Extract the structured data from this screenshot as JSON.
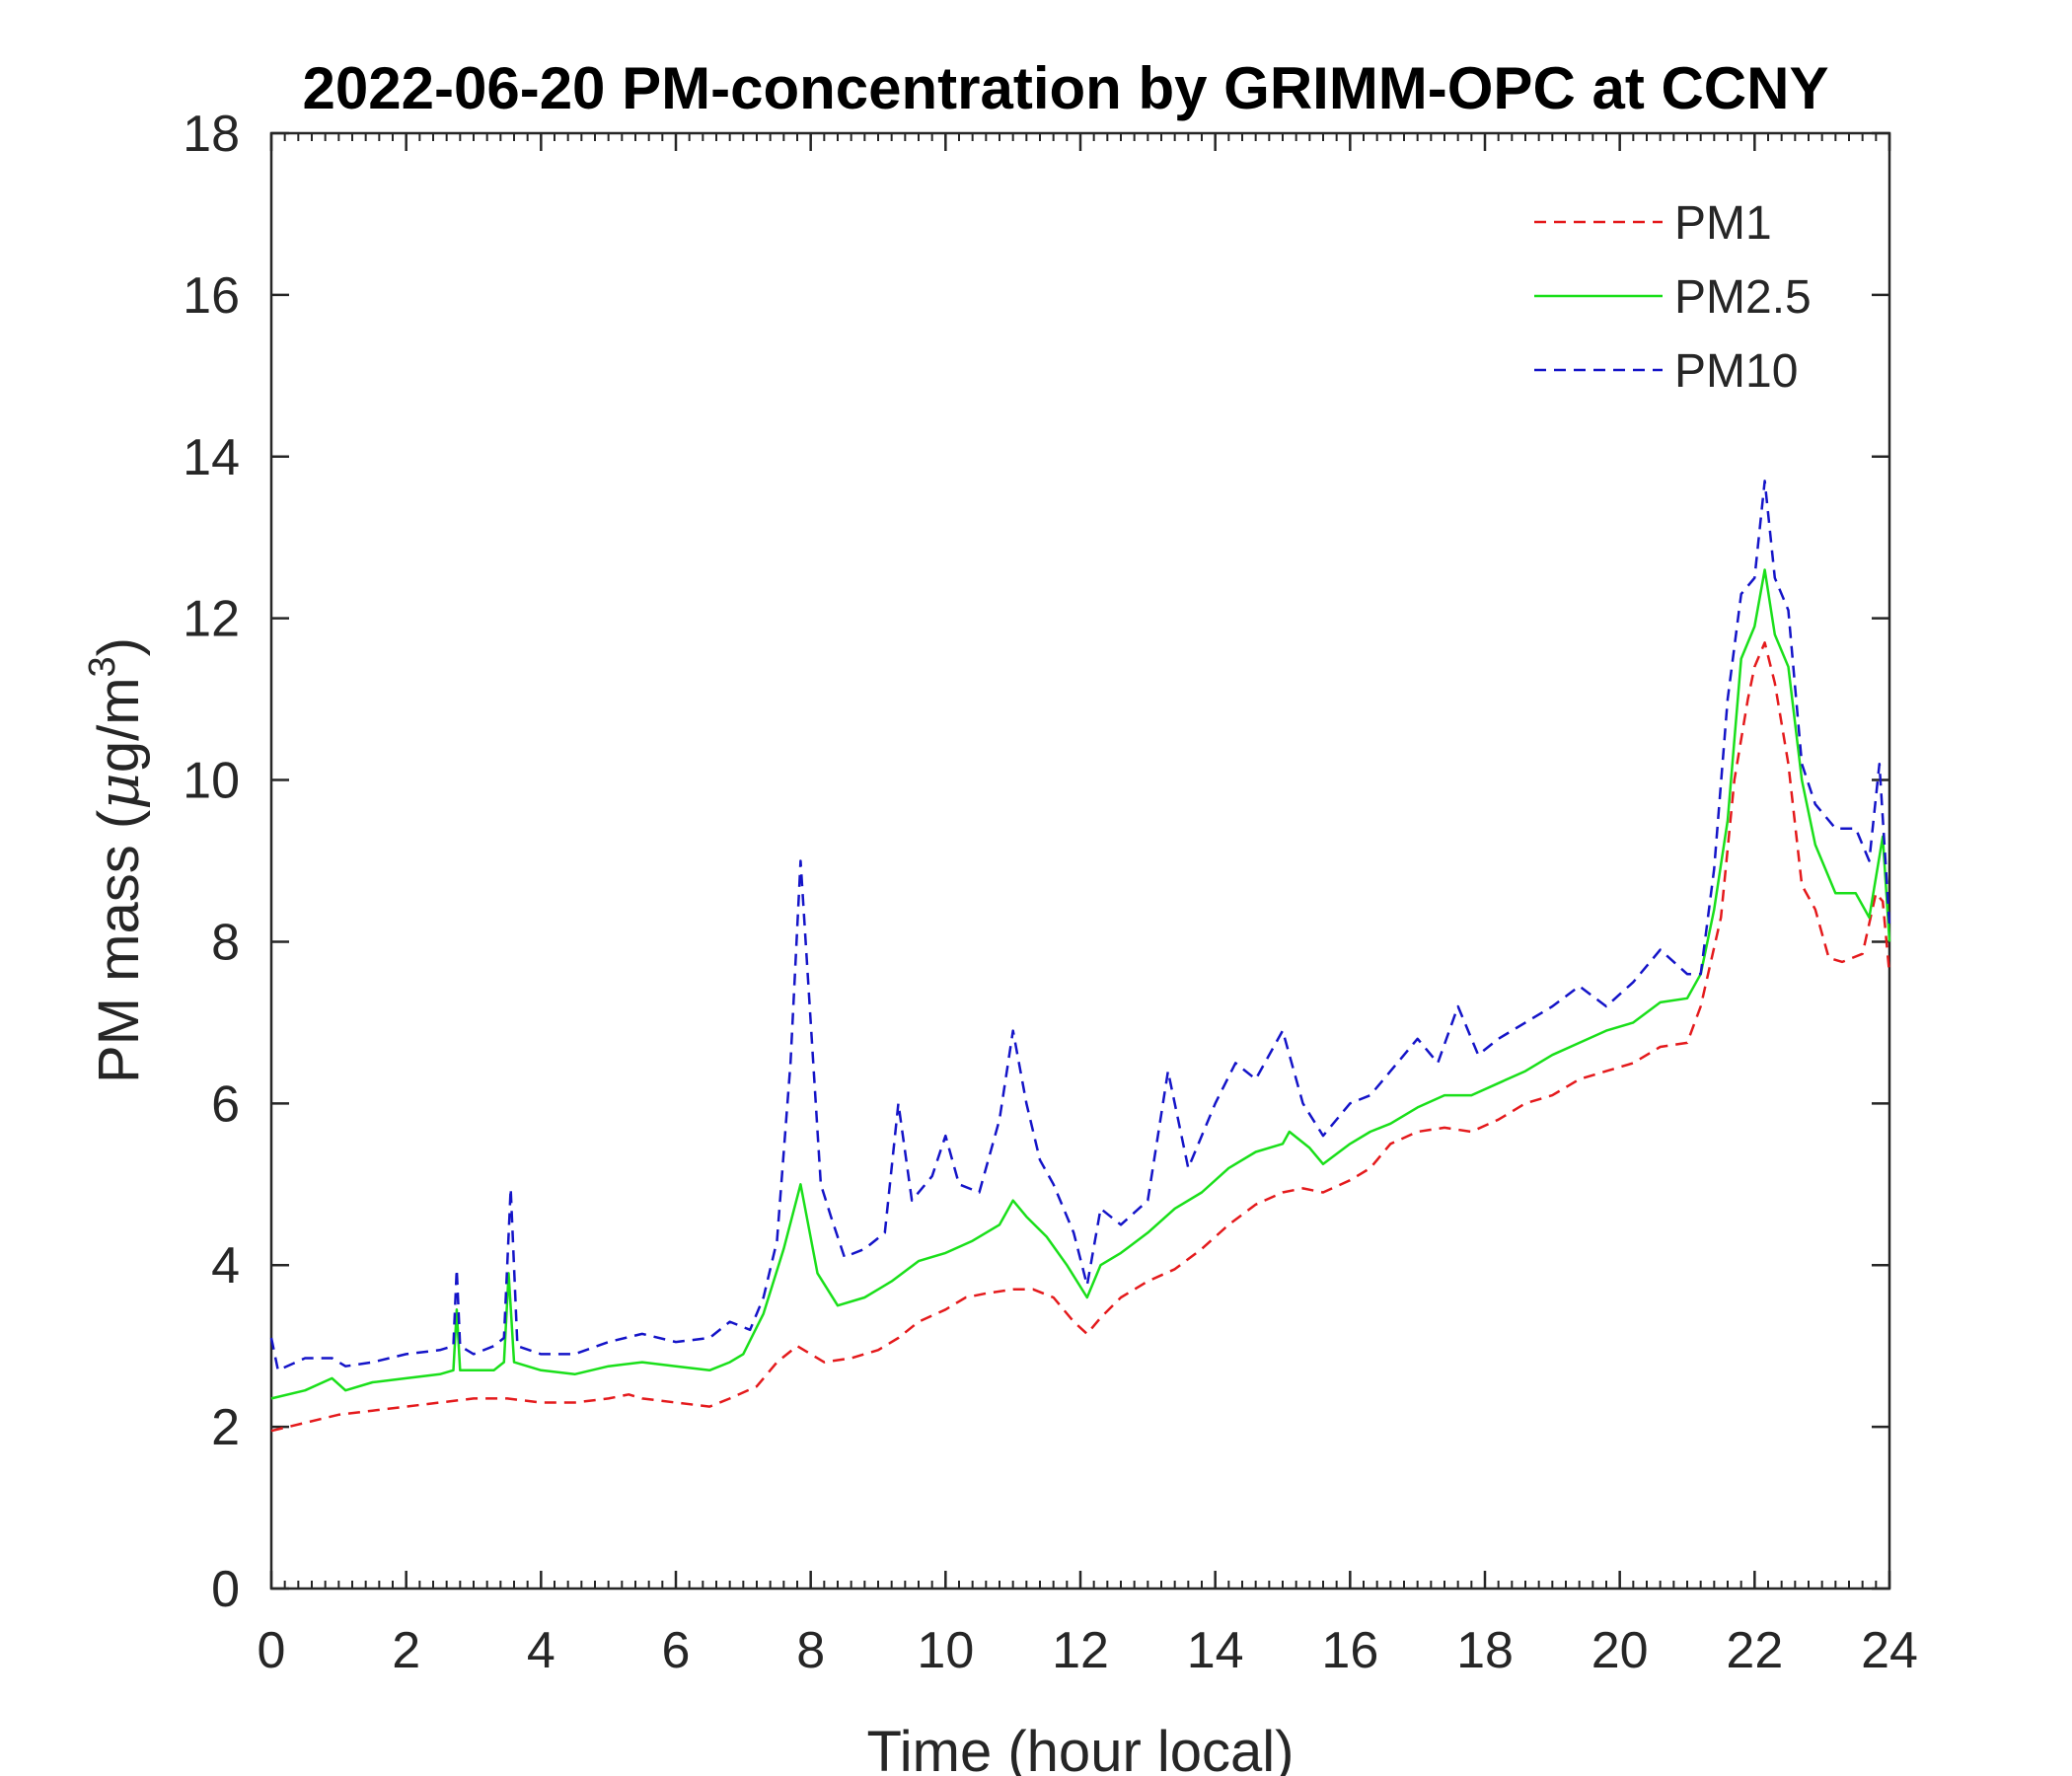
{
  "chart_data": {
    "type": "line",
    "title": "2022-06-20 PM-concentration by GRIMM-OPC at CCNY",
    "xlabel": "Time (hour local)",
    "ylabel_main": "PM mass (",
    "ylabel_mu": "μ",
    "ylabel_unit": "g/m",
    "ylabel_sup": "3",
    "ylabel_close": ")",
    "xlim": [
      0,
      24
    ],
    "ylim": [
      0,
      18
    ],
    "xticks": [
      "0",
      "2",
      "4",
      "6",
      "8",
      "10",
      "12",
      "14",
      "16",
      "18",
      "20",
      "22",
      "24"
    ],
    "yticks": [
      "0",
      "2",
      "4",
      "6",
      "8",
      "10",
      "12",
      "14",
      "16",
      "18"
    ],
    "legend_position": "top-right",
    "grid": false,
    "series": [
      {
        "name": "PM1",
        "color": "#e41a1c",
        "style": "dashed",
        "points": [
          [
            0,
            1.95
          ],
          [
            0.5,
            2.05
          ],
          [
            1,
            2.15
          ],
          [
            1.5,
            2.2
          ],
          [
            2,
            2.25
          ],
          [
            2.5,
            2.3
          ],
          [
            3,
            2.35
          ],
          [
            3.5,
            2.35
          ],
          [
            4,
            2.3
          ],
          [
            4.5,
            2.3
          ],
          [
            5,
            2.35
          ],
          [
            5.3,
            2.4
          ],
          [
            5.5,
            2.35
          ],
          [
            6,
            2.3
          ],
          [
            6.5,
            2.25
          ],
          [
            6.8,
            2.35
          ],
          [
            7.2,
            2.5
          ],
          [
            7.5,
            2.8
          ],
          [
            7.8,
            3.0
          ],
          [
            8.2,
            2.8
          ],
          [
            8.6,
            2.85
          ],
          [
            9,
            2.95
          ],
          [
            9.3,
            3.1
          ],
          [
            9.6,
            3.3
          ],
          [
            10,
            3.45
          ],
          [
            10.3,
            3.6
          ],
          [
            10.6,
            3.65
          ],
          [
            11,
            3.7
          ],
          [
            11.3,
            3.7
          ],
          [
            11.6,
            3.6
          ],
          [
            11.9,
            3.3
          ],
          [
            12.1,
            3.15
          ],
          [
            12.3,
            3.35
          ],
          [
            12.6,
            3.6
          ],
          [
            13,
            3.8
          ],
          [
            13.4,
            3.95
          ],
          [
            13.8,
            4.2
          ],
          [
            14.2,
            4.5
          ],
          [
            14.6,
            4.75
          ],
          [
            15,
            4.9
          ],
          [
            15.3,
            4.95
          ],
          [
            15.6,
            4.9
          ],
          [
            16,
            5.05
          ],
          [
            16.3,
            5.2
          ],
          [
            16.6,
            5.5
          ],
          [
            17,
            5.65
          ],
          [
            17.4,
            5.7
          ],
          [
            17.8,
            5.65
          ],
          [
            18.2,
            5.8
          ],
          [
            18.6,
            6.0
          ],
          [
            19,
            6.1
          ],
          [
            19.4,
            6.3
          ],
          [
            19.8,
            6.4
          ],
          [
            20.2,
            6.5
          ],
          [
            20.6,
            6.7
          ],
          [
            21,
            6.75
          ],
          [
            21.2,
            7.2
          ],
          [
            21.5,
            8.3
          ],
          [
            21.7,
            10.0
          ],
          [
            21.9,
            11.0
          ],
          [
            22.0,
            11.4
          ],
          [
            22.15,
            11.7
          ],
          [
            22.3,
            11.2
          ],
          [
            22.5,
            10.2
          ],
          [
            22.7,
            8.7
          ],
          [
            22.9,
            8.4
          ],
          [
            23.1,
            7.8
          ],
          [
            23.3,
            7.75
          ],
          [
            23.6,
            7.85
          ],
          [
            23.8,
            8.6
          ],
          [
            23.9,
            8.5
          ],
          [
            24,
            7.6
          ]
        ]
      },
      {
        "name": "PM2.5",
        "color": "#1adf1a",
        "style": "solid",
        "points": [
          [
            0,
            2.35
          ],
          [
            0.5,
            2.45
          ],
          [
            0.9,
            2.6
          ],
          [
            1.1,
            2.45
          ],
          [
            1.5,
            2.55
          ],
          [
            2,
            2.6
          ],
          [
            2.5,
            2.65
          ],
          [
            2.7,
            2.7
          ],
          [
            2.75,
            3.45
          ],
          [
            2.8,
            2.7
          ],
          [
            3,
            2.7
          ],
          [
            3.3,
            2.7
          ],
          [
            3.45,
            2.8
          ],
          [
            3.52,
            3.9
          ],
          [
            3.6,
            2.8
          ],
          [
            4,
            2.7
          ],
          [
            4.5,
            2.65
          ],
          [
            5,
            2.75
          ],
          [
            5.5,
            2.8
          ],
          [
            6,
            2.75
          ],
          [
            6.5,
            2.7
          ],
          [
            6.8,
            2.8
          ],
          [
            7,
            2.9
          ],
          [
            7.3,
            3.4
          ],
          [
            7.6,
            4.2
          ],
          [
            7.85,
            5.0
          ],
          [
            8.1,
            3.9
          ],
          [
            8.4,
            3.5
          ],
          [
            8.8,
            3.6
          ],
          [
            9.2,
            3.8
          ],
          [
            9.6,
            4.05
          ],
          [
            10,
            4.15
          ],
          [
            10.4,
            4.3
          ],
          [
            10.8,
            4.5
          ],
          [
            11.0,
            4.8
          ],
          [
            11.2,
            4.6
          ],
          [
            11.5,
            4.35
          ],
          [
            11.8,
            4.0
          ],
          [
            12.1,
            3.6
          ],
          [
            12.3,
            4.0
          ],
          [
            12.6,
            4.15
          ],
          [
            13,
            4.4
          ],
          [
            13.4,
            4.7
          ],
          [
            13.8,
            4.9
          ],
          [
            14.2,
            5.2
          ],
          [
            14.6,
            5.4
          ],
          [
            15,
            5.5
          ],
          [
            15.1,
            5.65
          ],
          [
            15.4,
            5.45
          ],
          [
            15.6,
            5.25
          ],
          [
            16,
            5.5
          ],
          [
            16.3,
            5.65
          ],
          [
            16.6,
            5.75
          ],
          [
            17,
            5.95
          ],
          [
            17.4,
            6.1
          ],
          [
            17.8,
            6.1
          ],
          [
            18.2,
            6.25
          ],
          [
            18.6,
            6.4
          ],
          [
            19,
            6.6
          ],
          [
            19.4,
            6.75
          ],
          [
            19.8,
            6.9
          ],
          [
            20.2,
            7.0
          ],
          [
            20.6,
            7.25
          ],
          [
            21,
            7.3
          ],
          [
            21.2,
            7.6
          ],
          [
            21.4,
            8.4
          ],
          [
            21.6,
            9.5
          ],
          [
            21.8,
            11.5
          ],
          [
            22.0,
            11.9
          ],
          [
            22.15,
            12.6
          ],
          [
            22.3,
            11.8
          ],
          [
            22.5,
            11.4
          ],
          [
            22.7,
            10.0
          ],
          [
            22.9,
            9.2
          ],
          [
            23.2,
            8.6
          ],
          [
            23.5,
            8.6
          ],
          [
            23.7,
            8.3
          ],
          [
            23.9,
            9.3
          ],
          [
            24,
            8.0
          ]
        ]
      },
      {
        "name": "PM10",
        "color": "#1414c8",
        "style": "dashed",
        "points": [
          [
            0,
            3.1
          ],
          [
            0.1,
            2.7
          ],
          [
            0.5,
            2.85
          ],
          [
            0.9,
            2.85
          ],
          [
            1.1,
            2.75
          ],
          [
            1.5,
            2.8
          ],
          [
            2,
            2.9
          ],
          [
            2.5,
            2.95
          ],
          [
            2.7,
            3.0
          ],
          [
            2.75,
            3.95
          ],
          [
            2.8,
            3.0
          ],
          [
            3.0,
            2.9
          ],
          [
            3.3,
            3.0
          ],
          [
            3.45,
            3.1
          ],
          [
            3.55,
            4.95
          ],
          [
            3.65,
            3.0
          ],
          [
            4,
            2.9
          ],
          [
            4.5,
            2.9
          ],
          [
            5,
            3.05
          ],
          [
            5.5,
            3.15
          ],
          [
            6,
            3.05
          ],
          [
            6.5,
            3.1
          ],
          [
            6.8,
            3.3
          ],
          [
            7.1,
            3.2
          ],
          [
            7.3,
            3.6
          ],
          [
            7.5,
            4.3
          ],
          [
            7.7,
            6.5
          ],
          [
            7.85,
            9.0
          ],
          [
            8.0,
            7.0
          ],
          [
            8.15,
            5.0
          ],
          [
            8.3,
            4.6
          ],
          [
            8.5,
            4.1
          ],
          [
            8.8,
            4.2
          ],
          [
            9.1,
            4.4
          ],
          [
            9.3,
            6.0
          ],
          [
            9.5,
            4.8
          ],
          [
            9.8,
            5.1
          ],
          [
            10,
            5.6
          ],
          [
            10.2,
            5.0
          ],
          [
            10.5,
            4.9
          ],
          [
            10.8,
            5.8
          ],
          [
            11.0,
            6.9
          ],
          [
            11.2,
            6.0
          ],
          [
            11.4,
            5.3
          ],
          [
            11.6,
            5.0
          ],
          [
            11.9,
            4.4
          ],
          [
            12.1,
            3.75
          ],
          [
            12.3,
            4.7
          ],
          [
            12.6,
            4.5
          ],
          [
            13,
            4.8
          ],
          [
            13.3,
            6.4
          ],
          [
            13.6,
            5.2
          ],
          [
            14,
            6.0
          ],
          [
            14.3,
            6.5
          ],
          [
            14.6,
            6.3
          ],
          [
            15,
            6.9
          ],
          [
            15.3,
            6.0
          ],
          [
            15.6,
            5.6
          ],
          [
            16,
            6.0
          ],
          [
            16.3,
            6.1
          ],
          [
            16.6,
            6.4
          ],
          [
            17,
            6.8
          ],
          [
            17.3,
            6.5
          ],
          [
            17.6,
            7.2
          ],
          [
            17.9,
            6.6
          ],
          [
            18.2,
            6.8
          ],
          [
            18.6,
            7.0
          ],
          [
            19,
            7.2
          ],
          [
            19.4,
            7.45
          ],
          [
            19.8,
            7.2
          ],
          [
            20.2,
            7.5
          ],
          [
            20.6,
            7.9
          ],
          [
            21,
            7.6
          ],
          [
            21.2,
            7.6
          ],
          [
            21.4,
            8.9
          ],
          [
            21.6,
            11.0
          ],
          [
            21.8,
            12.3
          ],
          [
            22.0,
            12.5
          ],
          [
            22.15,
            13.7
          ],
          [
            22.3,
            12.5
          ],
          [
            22.5,
            12.1
          ],
          [
            22.7,
            10.2
          ],
          [
            22.9,
            9.7
          ],
          [
            23.2,
            9.4
          ],
          [
            23.5,
            9.4
          ],
          [
            23.7,
            9.0
          ],
          [
            23.85,
            10.2
          ],
          [
            24,
            8.2
          ]
        ]
      }
    ]
  }
}
